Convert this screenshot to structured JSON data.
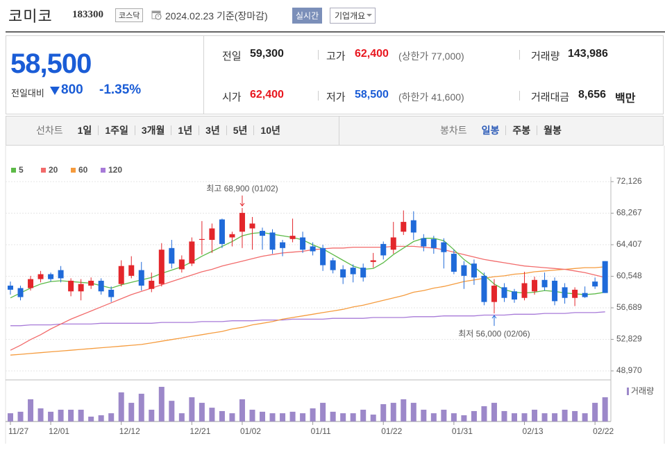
{
  "header": {
    "name": "코미코",
    "code": "183300",
    "market": "코스닥",
    "date": "2024.02.23 기준(장마감)",
    "realtime": "실시간",
    "company": "기업개요"
  },
  "quote": {
    "price": "58,500",
    "change_label": "전일대비",
    "change": "800",
    "change_rate": "-1.35%"
  },
  "stats": [
    {
      "label": "전일",
      "value": "59,300"
    },
    {
      "label": "고가",
      "value": "62,400",
      "note": "(상한가 77,000)"
    },
    {
      "label": "거래량",
      "value": "143,986"
    },
    {
      "label": "시가",
      "value": "62,400"
    },
    {
      "label": "저가",
      "value": "58,500",
      "note": "(하한가 41,600)"
    },
    {
      "label": "거래대금",
      "value": "8,656",
      "unit": "백만"
    }
  ],
  "tabs": {
    "line_chart": "선차트",
    "periods": [
      "1일",
      "1주일",
      "3개월",
      "1년",
      "3년",
      "5년",
      "10년"
    ],
    "candle_chart": "봉차트",
    "candles": [
      "일봉",
      "주봉",
      "월봉"
    ]
  },
  "chart_data": {
    "type": "candlestick",
    "categories": [
      "11/27",
      null,
      null,
      null,
      "12/01",
      null,
      null,
      null,
      null,
      null,
      null,
      "12/12",
      null,
      null,
      null,
      null,
      null,
      null,
      "12/21",
      null,
      null,
      null,
      null,
      "01/02",
      null,
      null,
      null,
      null,
      null,
      null,
      "01/11",
      null,
      null,
      null,
      null,
      null,
      null,
      "01/22",
      null,
      null,
      null,
      null,
      null,
      null,
      "01/31",
      null,
      null,
      null,
      null,
      null,
      null,
      "02/13",
      null,
      null,
      null,
      null,
      null,
      null,
      "02/22",
      null
    ],
    "open": [
      59400,
      59100,
      59100,
      60200,
      60800,
      61300,
      58700,
      58700,
      59400,
      60000,
      58900,
      59600,
      60600,
      61300,
      59000,
      59600,
      64000,
      61400,
      62100,
      65000,
      65000,
      67500,
      65300,
      66000,
      66400,
      66100,
      65900,
      64700,
      65100,
      65300,
      64200,
      64000,
      62500,
      61400,
      61600,
      61600,
      62300,
      64500,
      63800,
      66000,
      67400,
      65200,
      65100,
      64700,
      63300,
      61900,
      62100,
      60600,
      57400,
      59200,
      58700,
      57900,
      58700,
      60100,
      60000,
      59200,
      57900,
      58500,
      59900,
      62400
    ],
    "high": [
      59900,
      59400,
      60600,
      61200,
      61000,
      61800,
      60300,
      60200,
      60400,
      60300,
      59300,
      62500,
      63000,
      62300,
      61000,
      64600,
      65000,
      63100,
      65300,
      67300,
      67000,
      67600,
      66000,
      68900,
      67800,
      66500,
      66300,
      65000,
      67600,
      66000,
      64700,
      64400,
      62800,
      61900,
      62000,
      62100,
      63400,
      64800,
      67200,
      68600,
      68500,
      65700,
      65500,
      65200,
      63800,
      62400,
      62600,
      61000,
      60200,
      59700,
      59000,
      61100,
      60500,
      61000,
      60400,
      59700,
      59200,
      59300,
      60400,
      62400
    ],
    "low": [
      58300,
      57600,
      58800,
      59800,
      59900,
      59800,
      58100,
      57600,
      59000,
      58300,
      57400,
      59300,
      60300,
      58800,
      58600,
      59300,
      61500,
      61000,
      61800,
      63200,
      63400,
      64000,
      64200,
      64000,
      63800,
      63800,
      63300,
      63000,
      64700,
      63400,
      63100,
      61200,
      60900,
      59600,
      59800,
      59900,
      61600,
      62600,
      63300,
      65600,
      65000,
      63600,
      63300,
      61500,
      60800,
      59000,
      59500,
      57000,
      56000,
      57400,
      57300,
      57600,
      58300,
      58800,
      57000,
      57200,
      56900,
      57900,
      59000,
      58500
    ],
    "close": [
      58900,
      58000,
      60200,
      60800,
      60200,
      60300,
      60000,
      59600,
      60000,
      58700,
      58000,
      61800,
      61900,
      59400,
      60000,
      63800,
      62100,
      62600,
      64800,
      65100,
      66400,
      64500,
      65700,
      68300,
      67000,
      65500,
      63800,
      64000,
      65500,
      63800,
      63600,
      61900,
      61300,
      60400,
      60800,
      60400,
      62500,
      63100,
      65300,
      67200,
      65900,
      64200,
      64000,
      63500,
      61100,
      60600,
      60400,
      57400,
      59400,
      57900,
      57700,
      59700,
      60100,
      59200,
      57500,
      57900,
      58900,
      58000,
      59300,
      58500
    ],
    "up_color": "#e3262b",
    "down_color": "#1f6ad9",
    "moving_averages": [
      {
        "name": "5",
        "color": "#5cba47",
        "values": [
          57900,
          58500,
          59100,
          59600,
          59900,
          60000,
          59900,
          59800,
          59700,
          59400,
          59100,
          59500,
          59800,
          60100,
          60400,
          60900,
          61300,
          61700,
          62300,
          63000,
          63600,
          64200,
          64800,
          65500,
          65800,
          65900,
          65700,
          65500,
          65300,
          65000,
          64400,
          63900,
          63200,
          62500,
          61800,
          61400,
          61500,
          62200,
          63200,
          64000,
          64800,
          65200,
          65200,
          64900,
          63800,
          62600,
          61700,
          60700,
          59600,
          58900,
          58600,
          58500,
          58600,
          58800,
          58700,
          58500,
          58400,
          58300,
          58400,
          58600
        ]
      },
      {
        "name": "20",
        "color": "#f26b6b",
        "values": [
          51500,
          52100,
          52800,
          53400,
          54100,
          54700,
          55300,
          55800,
          56300,
          56800,
          57300,
          57800,
          58300,
          58700,
          59100,
          59500,
          59900,
          60300,
          60700,
          61100,
          61400,
          61800,
          62100,
          62400,
          62700,
          63000,
          63200,
          63400,
          63500,
          63600,
          63800,
          63900,
          64000,
          64000,
          64100,
          64100,
          64100,
          64100,
          64200,
          64200,
          64200,
          64100,
          64000,
          63800,
          63500,
          63200,
          62900,
          62600,
          62400,
          62200,
          62000,
          61800,
          61700,
          61600,
          61500,
          61400,
          61200,
          61000,
          60700,
          60400
        ]
      },
      {
        "name": "60",
        "color": "#f59b3d",
        "values": [
          50900,
          51000,
          51100,
          51200,
          51300,
          51400,
          51500,
          51600,
          51700,
          51800,
          51900,
          52000,
          52100,
          52200,
          52400,
          52600,
          52800,
          53000,
          53200,
          53400,
          53600,
          53800,
          54100,
          54300,
          54600,
          54800,
          55000,
          55300,
          55500,
          55700,
          55900,
          56100,
          56300,
          56500,
          56800,
          57000,
          57300,
          57600,
          57900,
          58200,
          58600,
          58800,
          59100,
          59300,
          59600,
          59900,
          60100,
          60300,
          60500,
          60600,
          60800,
          60900,
          61100,
          61200,
          61300,
          61400,
          61500,
          61600,
          61600,
          61700
        ]
      },
      {
        "name": "120",
        "color": "#a77ad8",
        "values": [
          54500,
          54500,
          54600,
          54600,
          54600,
          54700,
          54700,
          54700,
          54700,
          54800,
          54800,
          54800,
          54800,
          54800,
          54800,
          54900,
          54900,
          54900,
          54900,
          55000,
          55000,
          55000,
          55100,
          55100,
          55100,
          55200,
          55200,
          55200,
          55300,
          55300,
          55300,
          55300,
          55400,
          55400,
          55400,
          55400,
          55500,
          55500,
          55500,
          55500,
          55600,
          55600,
          55600,
          55700,
          55700,
          55700,
          55700,
          55800,
          55800,
          55800,
          55900,
          55900,
          55900,
          56000,
          56000,
          56000,
          56100,
          56100,
          56100,
          56200
        ]
      }
    ],
    "volume": {
      "name": "거래량",
      "color": "#9c88c9",
      "values": [
        49000,
        58000,
        132000,
        78000,
        58000,
        70000,
        70000,
        70000,
        29000,
        37000,
        49000,
        173000,
        111000,
        165000,
        70000,
        206000,
        123000,
        49000,
        144000,
        111000,
        82000,
        62000,
        49000,
        132000,
        70000,
        58000,
        49000,
        49000,
        58000,
        49000,
        78000,
        111000,
        58000,
        49000,
        49000,
        70000,
        41000,
        103000,
        111000,
        132000,
        111000,
        70000,
        49000,
        70000,
        49000,
        37000,
        62000,
        91000,
        111000,
        62000,
        49000,
        49000,
        70000,
        49000,
        49000,
        70000,
        62000,
        49000,
        111000,
        143986
      ]
    },
    "ylim": [
      48970,
      72126
    ],
    "yticks": [
      {
        "value": 72126,
        "label": "72,126"
      },
      {
        "value": 68267,
        "label": "68,267"
      },
      {
        "value": 64407,
        "label": "64,407"
      },
      {
        "value": 60548,
        "label": "60,548"
      },
      {
        "value": 56689,
        "label": "56,689"
      },
      {
        "value": 52829,
        "label": "52,829"
      },
      {
        "value": 48970,
        "label": "48,970"
      }
    ],
    "grid": true,
    "annotations": [
      "최고 68,900 (01/02)",
      "최저 56,000 (02/06)"
    ]
  }
}
